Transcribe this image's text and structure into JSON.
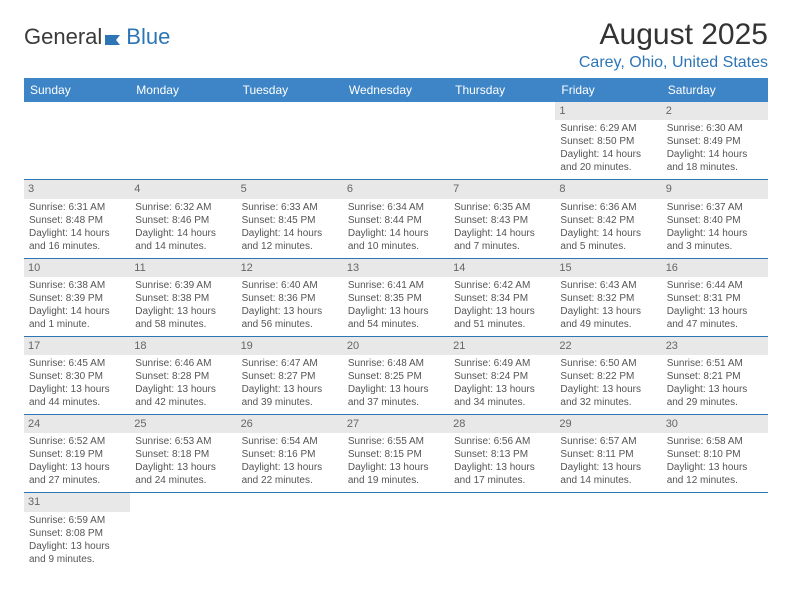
{
  "logo": {
    "text_part1": "General",
    "text_part2": "Blue",
    "accent_color": "#2e75b6"
  },
  "header": {
    "title": "August 2025",
    "location": "Carey, Ohio, United States"
  },
  "calendar": {
    "columns": [
      "Sunday",
      "Monday",
      "Tuesday",
      "Wednesday",
      "Thursday",
      "Friday",
      "Saturday"
    ],
    "header_bg": "#3d85c6",
    "header_fg": "#ffffff",
    "border_color": "#2e75b6",
    "daynum_bg": "#e8e8e8",
    "weeks": [
      [
        null,
        null,
        null,
        null,
        null,
        {
          "day": "1",
          "sunrise": "Sunrise: 6:29 AM",
          "sunset": "Sunset: 8:50 PM",
          "daylight": "Daylight: 14 hours and 20 minutes."
        },
        {
          "day": "2",
          "sunrise": "Sunrise: 6:30 AM",
          "sunset": "Sunset: 8:49 PM",
          "daylight": "Daylight: 14 hours and 18 minutes."
        }
      ],
      [
        {
          "day": "3",
          "sunrise": "Sunrise: 6:31 AM",
          "sunset": "Sunset: 8:48 PM",
          "daylight": "Daylight: 14 hours and 16 minutes."
        },
        {
          "day": "4",
          "sunrise": "Sunrise: 6:32 AM",
          "sunset": "Sunset: 8:46 PM",
          "daylight": "Daylight: 14 hours and 14 minutes."
        },
        {
          "day": "5",
          "sunrise": "Sunrise: 6:33 AM",
          "sunset": "Sunset: 8:45 PM",
          "daylight": "Daylight: 14 hours and 12 minutes."
        },
        {
          "day": "6",
          "sunrise": "Sunrise: 6:34 AM",
          "sunset": "Sunset: 8:44 PM",
          "daylight": "Daylight: 14 hours and 10 minutes."
        },
        {
          "day": "7",
          "sunrise": "Sunrise: 6:35 AM",
          "sunset": "Sunset: 8:43 PM",
          "daylight": "Daylight: 14 hours and 7 minutes."
        },
        {
          "day": "8",
          "sunrise": "Sunrise: 6:36 AM",
          "sunset": "Sunset: 8:42 PM",
          "daylight": "Daylight: 14 hours and 5 minutes."
        },
        {
          "day": "9",
          "sunrise": "Sunrise: 6:37 AM",
          "sunset": "Sunset: 8:40 PM",
          "daylight": "Daylight: 14 hours and 3 minutes."
        }
      ],
      [
        {
          "day": "10",
          "sunrise": "Sunrise: 6:38 AM",
          "sunset": "Sunset: 8:39 PM",
          "daylight": "Daylight: 14 hours and 1 minute."
        },
        {
          "day": "11",
          "sunrise": "Sunrise: 6:39 AM",
          "sunset": "Sunset: 8:38 PM",
          "daylight": "Daylight: 13 hours and 58 minutes."
        },
        {
          "day": "12",
          "sunrise": "Sunrise: 6:40 AM",
          "sunset": "Sunset: 8:36 PM",
          "daylight": "Daylight: 13 hours and 56 minutes."
        },
        {
          "day": "13",
          "sunrise": "Sunrise: 6:41 AM",
          "sunset": "Sunset: 8:35 PM",
          "daylight": "Daylight: 13 hours and 54 minutes."
        },
        {
          "day": "14",
          "sunrise": "Sunrise: 6:42 AM",
          "sunset": "Sunset: 8:34 PM",
          "daylight": "Daylight: 13 hours and 51 minutes."
        },
        {
          "day": "15",
          "sunrise": "Sunrise: 6:43 AM",
          "sunset": "Sunset: 8:32 PM",
          "daylight": "Daylight: 13 hours and 49 minutes."
        },
        {
          "day": "16",
          "sunrise": "Sunrise: 6:44 AM",
          "sunset": "Sunset: 8:31 PM",
          "daylight": "Daylight: 13 hours and 47 minutes."
        }
      ],
      [
        {
          "day": "17",
          "sunrise": "Sunrise: 6:45 AM",
          "sunset": "Sunset: 8:30 PM",
          "daylight": "Daylight: 13 hours and 44 minutes."
        },
        {
          "day": "18",
          "sunrise": "Sunrise: 6:46 AM",
          "sunset": "Sunset: 8:28 PM",
          "daylight": "Daylight: 13 hours and 42 minutes."
        },
        {
          "day": "19",
          "sunrise": "Sunrise: 6:47 AM",
          "sunset": "Sunset: 8:27 PM",
          "daylight": "Daylight: 13 hours and 39 minutes."
        },
        {
          "day": "20",
          "sunrise": "Sunrise: 6:48 AM",
          "sunset": "Sunset: 8:25 PM",
          "daylight": "Daylight: 13 hours and 37 minutes."
        },
        {
          "day": "21",
          "sunrise": "Sunrise: 6:49 AM",
          "sunset": "Sunset: 8:24 PM",
          "daylight": "Daylight: 13 hours and 34 minutes."
        },
        {
          "day": "22",
          "sunrise": "Sunrise: 6:50 AM",
          "sunset": "Sunset: 8:22 PM",
          "daylight": "Daylight: 13 hours and 32 minutes."
        },
        {
          "day": "23",
          "sunrise": "Sunrise: 6:51 AM",
          "sunset": "Sunset: 8:21 PM",
          "daylight": "Daylight: 13 hours and 29 minutes."
        }
      ],
      [
        {
          "day": "24",
          "sunrise": "Sunrise: 6:52 AM",
          "sunset": "Sunset: 8:19 PM",
          "daylight": "Daylight: 13 hours and 27 minutes."
        },
        {
          "day": "25",
          "sunrise": "Sunrise: 6:53 AM",
          "sunset": "Sunset: 8:18 PM",
          "daylight": "Daylight: 13 hours and 24 minutes."
        },
        {
          "day": "26",
          "sunrise": "Sunrise: 6:54 AM",
          "sunset": "Sunset: 8:16 PM",
          "daylight": "Daylight: 13 hours and 22 minutes."
        },
        {
          "day": "27",
          "sunrise": "Sunrise: 6:55 AM",
          "sunset": "Sunset: 8:15 PM",
          "daylight": "Daylight: 13 hours and 19 minutes."
        },
        {
          "day": "28",
          "sunrise": "Sunrise: 6:56 AM",
          "sunset": "Sunset: 8:13 PM",
          "daylight": "Daylight: 13 hours and 17 minutes."
        },
        {
          "day": "29",
          "sunrise": "Sunrise: 6:57 AM",
          "sunset": "Sunset: 8:11 PM",
          "daylight": "Daylight: 13 hours and 14 minutes."
        },
        {
          "day": "30",
          "sunrise": "Sunrise: 6:58 AM",
          "sunset": "Sunset: 8:10 PM",
          "daylight": "Daylight: 13 hours and 12 minutes."
        }
      ],
      [
        {
          "day": "31",
          "sunrise": "Sunrise: 6:59 AM",
          "sunset": "Sunset: 8:08 PM",
          "daylight": "Daylight: 13 hours and 9 minutes."
        },
        null,
        null,
        null,
        null,
        null,
        null
      ]
    ]
  }
}
